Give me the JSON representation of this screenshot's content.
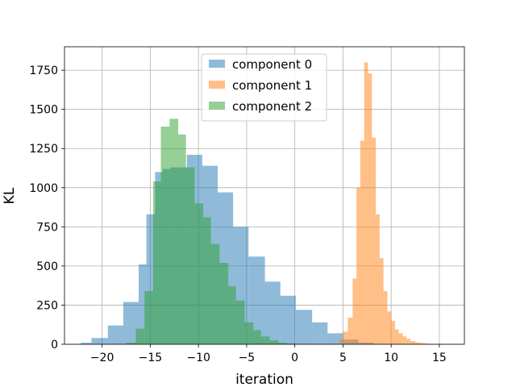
{
  "chart_data": {
    "type": "histogram",
    "xlabel": "iteration",
    "ylabel": "KL",
    "xlim": [
      -23.9,
      17.6
    ],
    "ylim": [
      0,
      1900
    ],
    "x_ticks": [
      -20,
      -15,
      -10,
      -5,
      0,
      5,
      10,
      15
    ],
    "x_tick_labels": [
      "−20",
      "−15",
      "−10",
      "−5",
      "0",
      "5",
      "10",
      "15"
    ],
    "y_ticks": [
      0,
      250,
      500,
      750,
      1000,
      1250,
      1500,
      1750
    ],
    "y_tick_labels": [
      "0",
      "250",
      "500",
      "750",
      "1000",
      "1250",
      "1500",
      "1750"
    ],
    "grid": true,
    "legend_position": "top-center",
    "series": [
      {
        "name": "component 0",
        "color": "#1f77b4",
        "alpha": 0.5,
        "bins": [
          [
            -22.2,
            -21.1,
            10
          ],
          [
            -21.1,
            -19.4,
            40
          ],
          [
            -19.4,
            -17.8,
            120
          ],
          [
            -17.8,
            -16.2,
            270
          ],
          [
            -16.2,
            -15.4,
            510
          ],
          [
            -15.4,
            -14.5,
            830
          ],
          [
            -14.5,
            -13.7,
            1100
          ],
          [
            -13.7,
            -12.9,
            1120
          ],
          [
            -12.9,
            -11.2,
            1130
          ],
          [
            -11.2,
            -9.6,
            1210
          ],
          [
            -9.6,
            -8.0,
            1140
          ],
          [
            -8.0,
            -6.4,
            970
          ],
          [
            -6.4,
            -4.8,
            750
          ],
          [
            -4.8,
            -3.1,
            560
          ],
          [
            -3.1,
            -1.5,
            400
          ],
          [
            -1.5,
            0.1,
            310
          ],
          [
            0.1,
            1.8,
            220
          ],
          [
            1.8,
            3.4,
            140
          ],
          [
            3.4,
            5.0,
            70
          ],
          [
            5.0,
            6.6,
            30
          ],
          [
            6.6,
            8.2,
            10
          ]
        ]
      },
      {
        "name": "component 1",
        "color": "#ff7f0e",
        "alpha": 0.5,
        "bins": [
          [
            4.6,
            5.0,
            30
          ],
          [
            5.0,
            5.5,
            80
          ],
          [
            5.5,
            6.0,
            170
          ],
          [
            6.0,
            6.4,
            420
          ],
          [
            6.4,
            6.8,
            1000
          ],
          [
            6.8,
            7.2,
            1300
          ],
          [
            7.2,
            7.6,
            1800
          ],
          [
            7.6,
            8.0,
            1730
          ],
          [
            8.0,
            8.4,
            1320
          ],
          [
            8.4,
            8.8,
            830
          ],
          [
            8.8,
            9.2,
            550
          ],
          [
            9.2,
            9.6,
            340
          ],
          [
            9.6,
            10.0,
            210
          ],
          [
            10.0,
            10.4,
            150
          ],
          [
            10.4,
            10.8,
            95
          ],
          [
            10.8,
            11.2,
            70
          ],
          [
            11.2,
            11.6,
            50
          ],
          [
            11.6,
            12.0,
            35
          ],
          [
            12.0,
            12.5,
            20
          ],
          [
            12.5,
            13.0,
            12
          ],
          [
            13.0,
            13.5,
            8
          ],
          [
            13.5,
            14.0,
            5
          ]
        ]
      },
      {
        "name": "component 2",
        "color": "#2ca02c",
        "alpha": 0.5,
        "bins": [
          [
            -17.5,
            -16.5,
            10
          ],
          [
            -16.5,
            -15.6,
            100
          ],
          [
            -15.6,
            -14.7,
            340
          ],
          [
            -14.7,
            -13.9,
            1040
          ],
          [
            -13.9,
            -13.0,
            1390
          ],
          [
            -13.0,
            -12.1,
            1440
          ],
          [
            -12.1,
            -11.3,
            1340
          ],
          [
            -11.3,
            -10.4,
            1130
          ],
          [
            -10.4,
            -9.5,
            900
          ],
          [
            -9.5,
            -8.7,
            810
          ],
          [
            -8.7,
            -7.8,
            640
          ],
          [
            -7.8,
            -6.9,
            520
          ],
          [
            -6.9,
            -6.1,
            370
          ],
          [
            -6.1,
            -5.2,
            280
          ],
          [
            -5.2,
            -4.3,
            140
          ],
          [
            -4.3,
            -3.5,
            90
          ],
          [
            -3.5,
            -2.6,
            50
          ],
          [
            -2.6,
            -1.7,
            25
          ],
          [
            -1.7,
            -0.8,
            10
          ],
          [
            -0.8,
            0.0,
            5
          ]
        ]
      }
    ]
  }
}
